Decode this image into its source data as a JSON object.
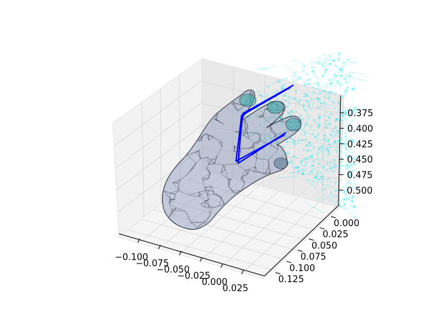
{
  "chart_data": {
    "type": "3d-wireframe-mesh",
    "title": "",
    "xlabel": "",
    "ylabel": "",
    "zlabel": "",
    "grid": true,
    "x_axis": {
      "ticks": [
        -0.1,
        -0.075,
        -0.05,
        -0.025,
        0.0,
        0.025
      ],
      "tick_labels": [
        "−0.100",
        "−0.075",
        "−0.050",
        "−0.025",
        "0.000",
        "0.025"
      ],
      "lim": [
        -0.115,
        0.035
      ]
    },
    "y_axis": {
      "ticks": [
        0.0,
        0.025,
        0.05,
        0.075,
        0.1,
        0.125
      ],
      "tick_labels": [
        "0.000",
        "0.025",
        "0.050",
        "0.075",
        "0.100",
        "0.125"
      ],
      "lim": [
        -0.01,
        0.135
      ]
    },
    "z_axis": {
      "ticks": [
        0.375,
        0.4,
        0.425,
        0.45,
        0.475,
        0.5
      ],
      "tick_labels": [
        "0.375",
        "0.400",
        "0.425",
        "0.450",
        "0.475",
        "0.500"
      ],
      "lim": [
        0.355,
        0.515
      ],
      "inverted": true
    },
    "series": [
      {
        "kind": "hand-mesh",
        "color": "#8a97b8",
        "edge_color": "#2b3040",
        "alpha": 0.45
      },
      {
        "kind": "point-cloud",
        "color": "#00e5ee",
        "alpha": 0.15
      },
      {
        "kind": "skeleton-lines",
        "color": "#0000ff"
      }
    ],
    "colors": {
      "pane_left": "#f2f2f2",
      "pane_right": "#e9e9e9",
      "pane_floor": "#f5f5f5",
      "grid": "#d4d4d4",
      "mesh_fill": "#8a97b8",
      "mesh_edge": "#2b3040",
      "cloud": "#00e5ee",
      "skeleton": "#0000ff"
    }
  }
}
